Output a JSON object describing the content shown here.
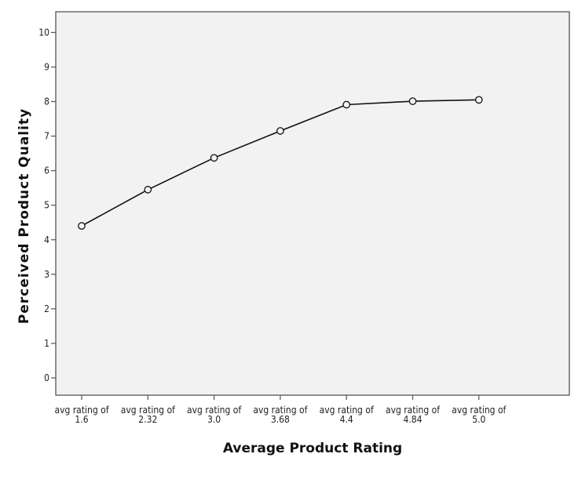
{
  "chart_data": {
    "type": "line",
    "title": "",
    "xlabel": "Average Product Rating",
    "ylabel": "Perceived Product Quality",
    "categories": [
      [
        "avg rating of",
        "1.6"
      ],
      [
        "avg rating of",
        "2.32"
      ],
      [
        "avg rating of",
        "3.0"
      ],
      [
        "avg rating of",
        "3.68"
      ],
      [
        "avg rating of",
        "4.4"
      ],
      [
        "avg rating of",
        "4.84"
      ],
      [
        "avg rating of",
        "5.0"
      ]
    ],
    "values": [
      4.4,
      5.45,
      6.37,
      7.15,
      7.91,
      8.01,
      8.05
    ],
    "ylim": [
      -0.5,
      10.6
    ],
    "yticks": [
      "0",
      "1",
      "2",
      "3",
      "4",
      "5",
      "6",
      "7",
      "8",
      "9",
      "10"
    ],
    "grid": false,
    "legend": "none",
    "colors": {
      "plot_background": "#f2f2f2",
      "frame": "#555555",
      "line": "#111111",
      "marker_stroke": "#111111",
      "marker_fill": "#f2f2f2"
    }
  }
}
